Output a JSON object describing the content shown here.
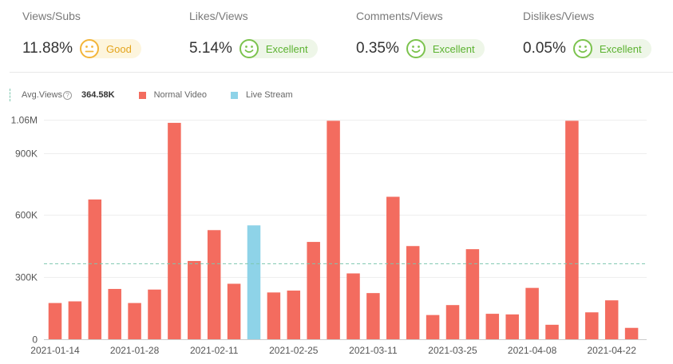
{
  "metrics": [
    {
      "label": "Views/Subs",
      "value": "11.88%",
      "rating": "Good",
      "face": "neutral-face-icon"
    },
    {
      "label": "Likes/Views",
      "value": "5.14%",
      "rating": "Excellent",
      "face": "smile-face-icon"
    },
    {
      "label": "Comments/Views",
      "value": "0.35%",
      "rating": "Excellent",
      "face": "smile-face-icon"
    },
    {
      "label": "Dislikes/Views",
      "value": "0.05%",
      "rating": "Excellent",
      "face": "smile-face-icon"
    }
  ],
  "legend": {
    "avg_label": "Avg.Views",
    "help_glyph": "?",
    "avg_value": "364.58K",
    "normal_label": "Normal Video",
    "live_label": "Live Stream"
  },
  "colors": {
    "normal": "#f36c5f",
    "live": "#8ed3e8",
    "avg_line": "#7cc6ae",
    "good": "#f3b53a",
    "excellent": "#7cc34e"
  },
  "chart_data": {
    "type": "bar",
    "title": "",
    "xlabel": "",
    "ylabel": "",
    "ylim": [
      0,
      1060000
    ],
    "y_ticks": [
      0,
      300000,
      600000,
      900000,
      1060000
    ],
    "y_tick_labels": [
      "0",
      "300K",
      "600K",
      "900K",
      "1.06M"
    ],
    "x_tick_labels": [
      "2021-01-14",
      "2021-01-28",
      "2021-02-11",
      "2021-02-25",
      "2021-03-11",
      "2021-03-25",
      "2021-04-08",
      "2021-04-22"
    ],
    "x_tick_every": 4,
    "average": 364580,
    "grid": true,
    "legend_position": "top-left",
    "series": [
      {
        "name": "Normal Video",
        "color": "#f36c5f",
        "values": [
          175000,
          183000,
          675000,
          243000,
          175000,
          240000,
          1045000,
          378000,
          527000,
          268000,
          null,
          226000,
          235000,
          470000,
          1055000,
          318000,
          223000,
          688000,
          450000,
          117000,
          165000,
          435000,
          123000,
          120000,
          248000,
          70000,
          1055000,
          130000,
          188000,
          55000
        ]
      },
      {
        "name": "Live Stream",
        "color": "#8ed3e8",
        "values": [
          null,
          null,
          null,
          null,
          null,
          null,
          null,
          null,
          null,
          null,
          550000,
          null,
          null,
          null,
          null,
          null,
          null,
          null,
          null,
          null,
          null,
          null,
          null,
          null,
          null,
          null,
          null,
          null,
          null,
          null
        ]
      }
    ]
  }
}
